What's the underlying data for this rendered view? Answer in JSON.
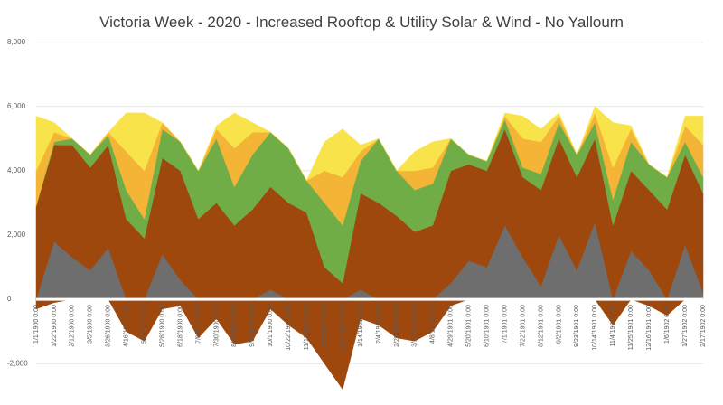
{
  "chart_data": {
    "type": "stacked-area",
    "title": "Victoria Week - 2020 - Increased Rooftop & Utility Solar & Wind - No Yallourn",
    "categories": [
      "1/1/1900 0:00",
      "1/22/1900 0:00",
      "2/12/1900 0:00",
      "3/5/1900 0:00",
      "3/26/1900 0:00",
      "4/16/1900 0:00",
      "5/7/1900 0:00",
      "5/28/1900 0:00",
      "6/18/1900 0:00",
      "7/9/1900 0:00",
      "7/30/1900 0:00",
      "8/20/1900 0:00",
      "9/10/1900 0:00",
      "10/1/1900 0:00",
      "10/22/1900 0:00",
      "11/12/1900 0:00",
      "12/3/1900 0:00",
      "12/24/1900 0:00",
      "1/14/1901 0:00",
      "2/4/1901 0:00",
      "2/25/1901 0:00",
      "3/18/1901 0:00",
      "4/8/1901 0:00",
      "4/29/1901 0:00",
      "5/20/1901 0:00",
      "6/10/1901 0:00",
      "7/1/1901 0:00",
      "7/22/1901 0:00",
      "8/12/1901 0:00",
      "9/2/1901 0:00",
      "9/23/1901 0:00",
      "10/14/1901 0:00",
      "11/4/1901 0:00",
      "11/25/1901 0:00",
      "12/16/1901 0:00",
      "1/6/1902 0:00",
      "1/27/1902 0:00",
      "2/17/1902 0:00"
    ],
    "series": [
      {
        "color": "#9e480e",
        "values": [
          -300,
          -100,
          0,
          0,
          0,
          -1000,
          -1300,
          -300,
          -200,
          -1200,
          -600,
          -1400,
          -1300,
          -300,
          -800,
          -1200,
          -2000,
          -2800,
          -600,
          -800,
          -1200,
          -1300,
          -1000,
          -200,
          0,
          0,
          0,
          0,
          0,
          0,
          0,
          0,
          -800,
          0,
          -200,
          -500,
          0,
          0
        ]
      },
      {
        "color": "#6e6e6e",
        "values": [
          0,
          1800,
          1300,
          900,
          1600,
          0,
          0,
          1400,
          600,
          0,
          0,
          0,
          0,
          300,
          0,
          0,
          0,
          0,
          300,
          0,
          0,
          0,
          0,
          500,
          1200,
          1000,
          2300,
          1300,
          400,
          2000,
          900,
          2400,
          0,
          1500,
          900,
          0,
          1700,
          200
        ]
      },
      {
        "color": "#9e480e",
        "values": [
          2900,
          3000,
          3500,
          3200,
          3200,
          2500,
          1900,
          3000,
          3400,
          2500,
          3000,
          2300,
          2800,
          3200,
          3000,
          2700,
          1000,
          500,
          3000,
          3000,
          2600,
          2100,
          2300,
          3500,
          3000,
          3000,
          3000,
          2500,
          3000,
          3000,
          2900,
          2600,
          2300,
          2500,
          2500,
          2800,
          2800,
          3100
        ]
      },
      {
        "color": "#70ad47",
        "values": [
          0,
          100,
          200,
          400,
          300,
          900,
          600,
          900,
          900,
          1500,
          2000,
          1200,
          1700,
          1700,
          1700,
          1000,
          2000,
          1800,
          1000,
          2000,
          1400,
          1300,
          1300,
          1000,
          300,
          300,
          300,
          300,
          500,
          500,
          700,
          500,
          800,
          900,
          800,
          1000,
          400,
          500
        ]
      },
      {
        "color": "#f4b537",
        "values": [
          1100,
          300,
          0,
          0,
          100,
          1200,
          1500,
          200,
          0,
          0,
          300,
          1200,
          700,
          0,
          0,
          0,
          1000,
          1500,
          300,
          0,
          0,
          600,
          500,
          0,
          0,
          0,
          100,
          900,
          1000,
          200,
          0,
          300,
          1000,
          400,
          0,
          0,
          500,
          1000
        ]
      },
      {
        "color": "#f8e44a",
        "values": [
          1700,
          300,
          0,
          0,
          0,
          1200,
          1800,
          0,
          0,
          0,
          100,
          1100,
          300,
          0,
          0,
          0,
          900,
          1500,
          200,
          0,
          0,
          600,
          800,
          0,
          0,
          0,
          100,
          700,
          400,
          100,
          0,
          200,
          1400,
          100,
          0,
          0,
          300,
          900
        ]
      }
    ],
    "ylim": [
      -2500,
      8300
    ],
    "yticks": [
      {
        "value": -2000,
        "label": "-2,000"
      },
      0,
      {
        "value": 2000,
        "label": "2,000"
      },
      {
        "value": 4000,
        "label": "4,000"
      },
      {
        "value": 6000,
        "label": "6,000"
      },
      {
        "value": 8000,
        "label": "8,000"
      }
    ],
    "grid": true
  }
}
